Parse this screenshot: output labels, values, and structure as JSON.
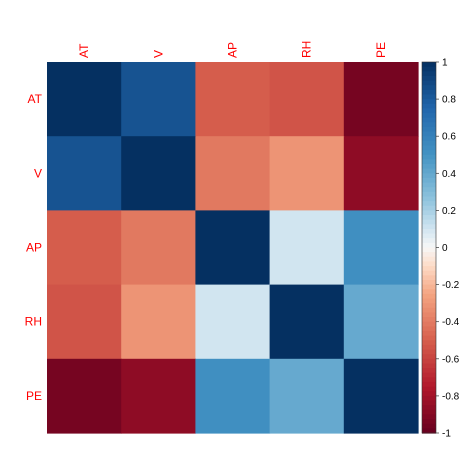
{
  "chart_data": {
    "type": "heatmap",
    "variables": [
      "AT",
      "V",
      "AP",
      "RH",
      "PE"
    ],
    "matrix": [
      [
        1.0,
        0.84,
        -0.51,
        -0.54,
        -0.95
      ],
      [
        0.84,
        1.0,
        -0.41,
        -0.31,
        -0.87
      ],
      [
        -0.51,
        -0.41,
        1.0,
        0.1,
        0.52
      ],
      [
        -0.54,
        -0.31,
        0.1,
        1.0,
        0.39
      ],
      [
        -0.95,
        -0.87,
        0.52,
        0.39,
        1.0
      ]
    ],
    "scale": {
      "min": -1,
      "max": 1,
      "ticks": [
        "-1",
        "-0.8",
        "-0.6",
        "-0.4",
        "-0.2",
        "0",
        "0.2",
        "0.4",
        "0.6",
        "0.8",
        "1"
      ],
      "colors": {
        "negative_strong": "#67001F",
        "negative_mid": "#D6604D",
        "neutral": "#F7F7F7",
        "positive_mid": "#4393C3",
        "positive_strong": "#053061"
      }
    },
    "label_color": "#FF0000",
    "legend_position": "right",
    "grid": false
  }
}
